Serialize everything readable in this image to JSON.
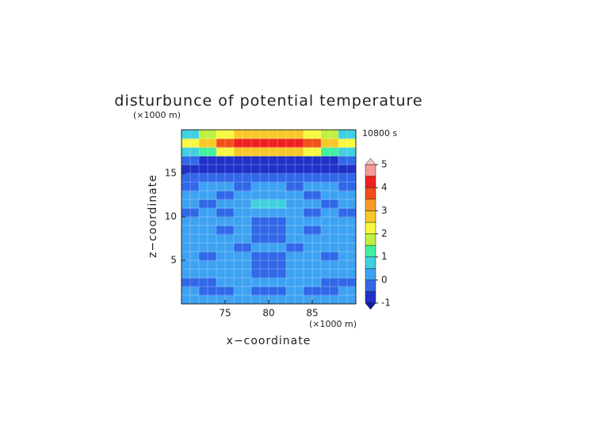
{
  "chart_data": {
    "type": "contour",
    "title": "disturbunce of potential temperature",
    "time_label": "10800 s",
    "x_label": "x−coordinate",
    "y_label": "z−coordinate",
    "x_unit": "(×1000 m)",
    "y_unit": "(×1000 m)",
    "xlim": [
      70,
      90
    ],
    "ylim": [
      0,
      20
    ],
    "xticks": [
      75,
      80,
      85
    ],
    "yticks": [
      5,
      10,
      15
    ],
    "x": [
      71,
      73,
      75,
      77,
      79,
      81,
      83,
      85,
      87,
      89
    ],
    "y": [
      0.5,
      1.5,
      2.5,
      3.5,
      4.5,
      5.5,
      6.5,
      7.5,
      8.5,
      9.5,
      10.5,
      11.5,
      12.5,
      13.5,
      14.5,
      15.5,
      16.5,
      17.5,
      18.5,
      19.5
    ],
    "z": [
      [
        0.2,
        0.2,
        0.2,
        0.2,
        0.2,
        0.2,
        0.2,
        0.2,
        0.2,
        0.2
      ],
      [
        0.2,
        -0.2,
        -0.2,
        0.2,
        -0.2,
        -0.2,
        0.2,
        -0.2,
        -0.2,
        0.2
      ],
      [
        -0.2,
        -0.2,
        0.2,
        0.2,
        0.2,
        0.2,
        0.2,
        0.2,
        -0.2,
        -0.2
      ],
      [
        0.2,
        0.2,
        0.2,
        0.2,
        -0.2,
        -0.2,
        0.2,
        0.2,
        0.2,
        0.2
      ],
      [
        0.2,
        0.2,
        0.2,
        0.2,
        -0.2,
        -0.2,
        0.2,
        0.2,
        0.2,
        0.2
      ],
      [
        0.2,
        -0.2,
        0.2,
        0.2,
        -0.2,
        -0.2,
        0.2,
        0.2,
        -0.2,
        0.2
      ],
      [
        0.2,
        0.2,
        0.2,
        -0.2,
        0.2,
        0.2,
        -0.2,
        0.2,
        0.2,
        0.2
      ],
      [
        0.2,
        0.2,
        0.2,
        0.2,
        -0.2,
        -0.2,
        0.2,
        0.2,
        0.2,
        0.2
      ],
      [
        0.2,
        0.2,
        -0.2,
        0.2,
        -0.2,
        -0.2,
        0.2,
        -0.2,
        0.2,
        0.2
      ],
      [
        0.2,
        0.2,
        0.2,
        0.2,
        -0.2,
        -0.2,
        0.2,
        0.2,
        0.2,
        0.2
      ],
      [
        -0.2,
        0.2,
        -0.2,
        0.2,
        0.2,
        0.2,
        0.2,
        -0.2,
        0.2,
        -0.2
      ],
      [
        0.2,
        -0.2,
        0.2,
        0.2,
        0.7,
        0.7,
        0.2,
        0.2,
        -0.2,
        0.2
      ],
      [
        0.2,
        0.2,
        -0.2,
        0.2,
        0.2,
        0.2,
        0.2,
        -0.2,
        0.2,
        0.2
      ],
      [
        -0.2,
        0.2,
        0.2,
        -0.2,
        0.2,
        0.2,
        -0.2,
        0.2,
        0.2,
        -0.2
      ],
      [
        -0.4,
        -0.4,
        -0.2,
        -0.2,
        -0.4,
        -0.4,
        -0.2,
        -0.2,
        -0.4,
        -0.4
      ],
      [
        -0.6,
        -0.6,
        -0.6,
        -0.6,
        -0.6,
        -0.6,
        -0.6,
        -0.6,
        -0.6,
        -0.6
      ],
      [
        -0.4,
        -0.8,
        -0.8,
        -0.8,
        -0.8,
        -0.8,
        -0.8,
        -0.8,
        -0.8,
        -0.4
      ],
      [
        0.7,
        1.2,
        2.2,
        2.7,
        2.7,
        2.7,
        2.7,
        2.2,
        1.2,
        0.7
      ],
      [
        2.2,
        2.7,
        3.7,
        4.2,
        4.3,
        4.3,
        4.2,
        3.7,
        2.7,
        2.2
      ],
      [
        0.7,
        1.7,
        2.2,
        2.7,
        2.7,
        2.7,
        2.7,
        2.2,
        1.7,
        0.7
      ]
    ],
    "levels": [
      -1,
      -0.5,
      0,
      0.5,
      1,
      1.5,
      2,
      2.5,
      3,
      3.5,
      4,
      4.5,
      5
    ],
    "colors": [
      "#2030c8",
      "#3068e8",
      "#3ea2f2",
      "#40d0e0",
      "#40f0a0",
      "#c0f040",
      "#f8f840",
      "#f8c828",
      "#f89828",
      "#f05018",
      "#f02020",
      "#f89898"
    ],
    "under_color": "#1818a0",
    "over_color": "#f4c8c8",
    "colorbar_ticks": [
      -1,
      0,
      1,
      2,
      3,
      4,
      5
    ]
  }
}
